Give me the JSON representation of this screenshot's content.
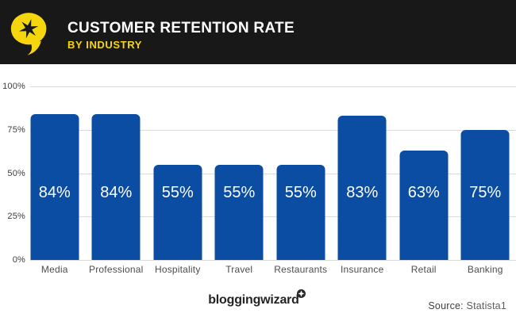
{
  "header": {
    "title": "CUSTOMER RETENTION RATE",
    "subtitle": "BY INDUSTRY",
    "bg_color": "#181818",
    "title_color": "#ffffff",
    "accent_yellow": "#F5D60D",
    "logo": "speech-bubble-with-star"
  },
  "chart_data": {
    "type": "bar",
    "title": "Customer Retention Rate by Industry",
    "categories": [
      "Media",
      "Professional",
      "Hospitality",
      "Travel",
      "Restaurants",
      "Insurance",
      "Retail",
      "Banking"
    ],
    "values": [
      84,
      84,
      55,
      55,
      55,
      83,
      63,
      75
    ],
    "value_labels": [
      "84%",
      "84%",
      "55%",
      "55%",
      "55%",
      "83%",
      "63%",
      "75%"
    ],
    "xlabel": "",
    "ylabel": "",
    "ylim": [
      0,
      100
    ],
    "yticks": [
      "0%",
      "25%",
      "50%",
      "75%",
      "100%"
    ],
    "grid": true,
    "legend": false,
    "bar_color": "#0B4DA2",
    "grid_color": "#DADADA",
    "value_label_color": "#ffffff"
  },
  "footer": {
    "brand": "bloggingwizard",
    "badge": "star-badge",
    "source_label": "Source:",
    "source_value": "Statista1"
  }
}
